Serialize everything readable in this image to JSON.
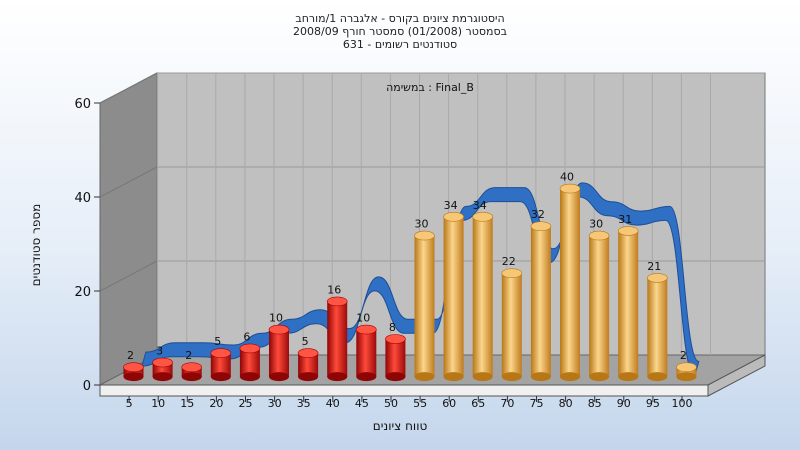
{
  "chart_data": {
    "type": "bar",
    "title": [
      "היסטוגרמת ציונים בקורס - אלגברה 1/מורחב",
      "בסמסטר  (01/2008)  סמסטר חורף 2008/09",
      "631 - סטודנטים רשומים"
    ],
    "subtitle": "במשימה : Final_B",
    "xlabel": "טווח ציונים",
    "ylabel": "מספר סטודנטים",
    "ylim": [
      0,
      60
    ],
    "yticks": [
      0,
      20,
      40,
      60
    ],
    "grid": true,
    "categories": [
      "5",
      "10",
      "15",
      "20",
      "25",
      "30",
      "35",
      "40",
      "45",
      "50",
      "55",
      "60",
      "65",
      "70",
      "75",
      "80",
      "85",
      "90",
      "95",
      "100"
    ],
    "values": [
      2,
      3,
      2,
      5,
      6,
      10,
      5,
      16,
      10,
      8,
      30,
      34,
      34,
      22,
      32,
      40,
      30,
      31,
      21,
      2
    ],
    "bar_colors": {
      "failing": "#d81818",
      "passing": "#e6a548"
    },
    "failing_count": 10,
    "trend": {
      "color": "#2f6fc4",
      "values": [
        2,
        4,
        4,
        3.5,
        6,
        9,
        11,
        7,
        18,
        9,
        9,
        33,
        37,
        37,
        24,
        38,
        34,
        32,
        33,
        0
      ]
    }
  }
}
